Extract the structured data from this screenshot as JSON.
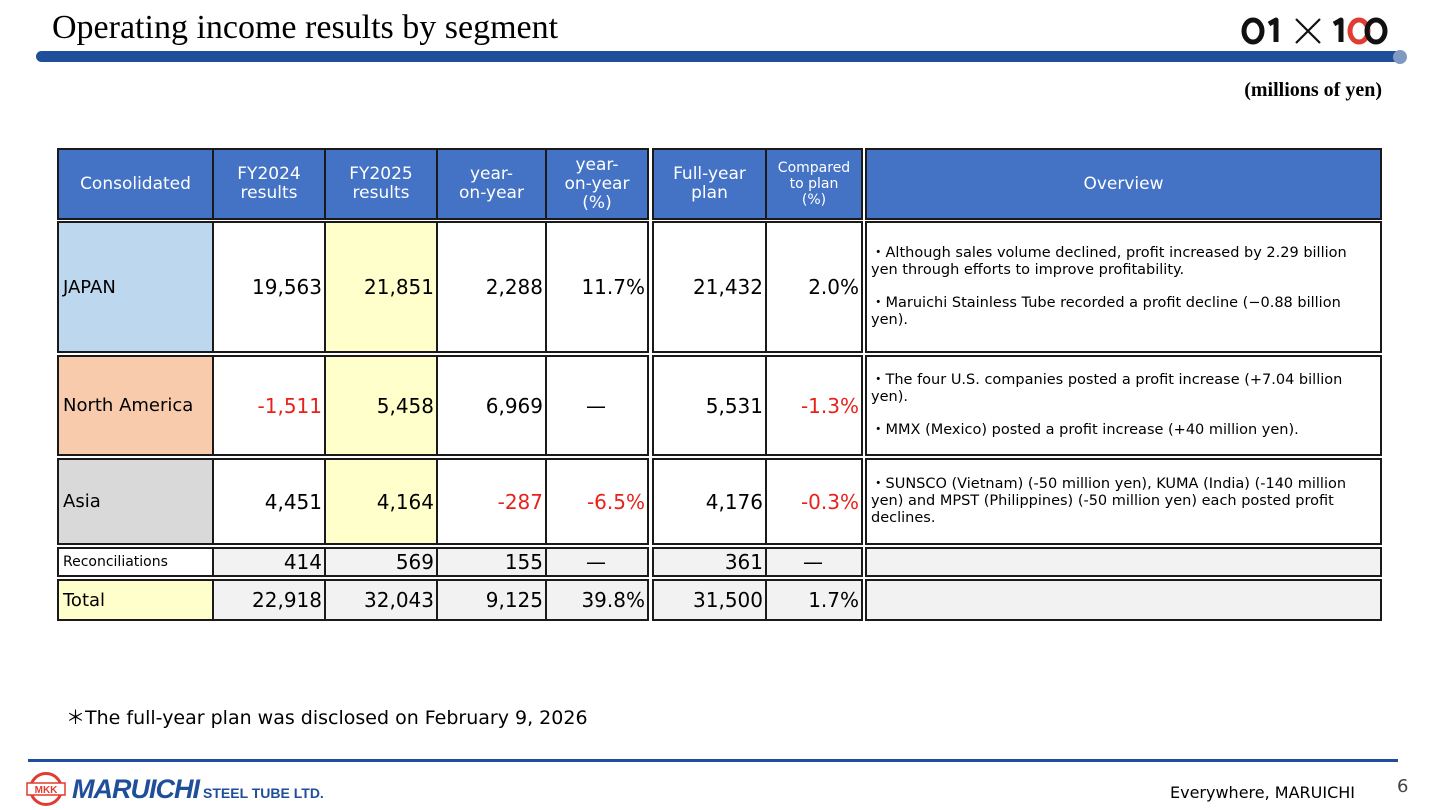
{
  "header": {
    "title": "Operating income results by segment",
    "units": "(millions of yen)",
    "logo_text": "01×100"
  },
  "table": {
    "headers": {
      "consolidated": "Consolidated",
      "fy2024": "FY2024\nresults",
      "fy2025": "FY2025\nresults",
      "yoy": "year-\non-year",
      "yoy_pct": "year-\non-year\n(%)",
      "plan": "Full-year\nplan",
      "vs_plan": "Compared\nto plan\n(%)",
      "overview": "Overview"
    },
    "rows": [
      {
        "segment": "JAPAN",
        "fy2024": "19,563",
        "fy2025": "21,851",
        "yoy": "2,288",
        "yoy_pct": "11.7%",
        "plan": "21,432",
        "vs_plan": "2.0%",
        "overview": [
          "・Although sales volume declined, profit increased by 2.29 billion yen through efforts to improve profitability.",
          "・Maruichi Stainless Tube recorded a profit decline (−0.88 billion yen)."
        ]
      },
      {
        "segment": "North America",
        "fy2024": "-1,511",
        "fy2025": "5,458",
        "yoy": "6,969",
        "yoy_pct": "—",
        "plan": "5,531",
        "vs_plan": "-1.3%",
        "overview": [
          "・The four U.S. companies posted a profit increase (+7.04 billion yen).",
          "・MMX (Mexico) posted a profit increase (+40 million yen)."
        ]
      },
      {
        "segment": "Asia",
        "fy2024": "4,451",
        "fy2025": "4,164",
        "yoy": "-287",
        "yoy_pct": "-6.5%",
        "plan": "4,176",
        "vs_plan": "-0.3%",
        "overview": [
          "・SUNSCO (Vietnam) (-50 million yen), KUMA (India) (-140 million yen) and MPST (Philippines) (-50 million yen) each posted profit declines."
        ]
      },
      {
        "segment": "Reconciliations",
        "fy2024": "414",
        "fy2025": "569",
        "yoy": "155",
        "yoy_pct": "—",
        "plan": "361",
        "vs_plan": "—"
      },
      {
        "segment": "Total",
        "fy2024": "22,918",
        "fy2025": "32,043",
        "yoy": "9,125",
        "yoy_pct": "39.8%",
        "plan": "31,500",
        "vs_plan": "1.7%"
      }
    ]
  },
  "footnote": "＊The full-year plan was disclosed on February 9, 2026",
  "footer": {
    "brand_mark": "MKK",
    "brand": "MARUICHI",
    "brand_sub": "STEEL TUBE LTD.",
    "slogan": "Everywhere, MARUICHI",
    "page": "6"
  },
  "colors": {
    "header_blue": "#4472c4",
    "bar_blue": "#1f4e9a",
    "negative_red": "#e8221b",
    "fy2025_yellow": "#ffffcc",
    "japan": "#bdd7ee",
    "north_america": "#f8cbad",
    "asia": "#d9d9d9",
    "logo_red": "#e03c31"
  }
}
